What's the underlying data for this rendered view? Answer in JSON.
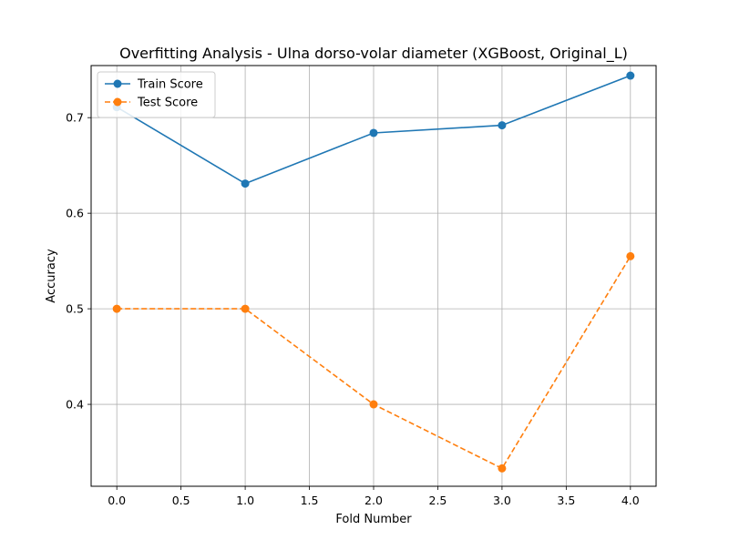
{
  "chart_data": {
    "type": "line",
    "title": "Overfitting Analysis - Ulna dorso-volar diameter (XGBoost, Original_L)",
    "xlabel": "Fold Number",
    "ylabel": "Accuracy",
    "x": [
      0,
      1,
      2,
      3,
      4
    ],
    "xlim": [
      -0.2,
      4.2
    ],
    "ylim": [
      0.3143,
      0.7545
    ],
    "xticks": [
      0.0,
      0.5,
      1.0,
      1.5,
      2.0,
      2.5,
      3.0,
      3.5,
      4.0
    ],
    "xtick_labels": [
      "0.0",
      "0.5",
      "1.0",
      "1.5",
      "2.0",
      "2.5",
      "3.0",
      "3.5",
      "4.0"
    ],
    "yticks": [
      0.4,
      0.5,
      0.6,
      0.7
    ],
    "ytick_labels": [
      "0.4",
      "0.5",
      "0.6",
      "0.7"
    ],
    "grid": true,
    "legend_position": "top-left",
    "series": [
      {
        "name": "Train Score",
        "values": [
          0.711,
          0.631,
          0.684,
          0.692,
          0.744
        ],
        "color": "#1f77b4",
        "line_style": "solid",
        "marker": "circle"
      },
      {
        "name": "Test Score",
        "values": [
          0.5,
          0.5,
          0.4,
          0.333,
          0.555
        ],
        "color": "#ff7f0e",
        "line_style": "dashed",
        "marker": "circle"
      }
    ]
  }
}
